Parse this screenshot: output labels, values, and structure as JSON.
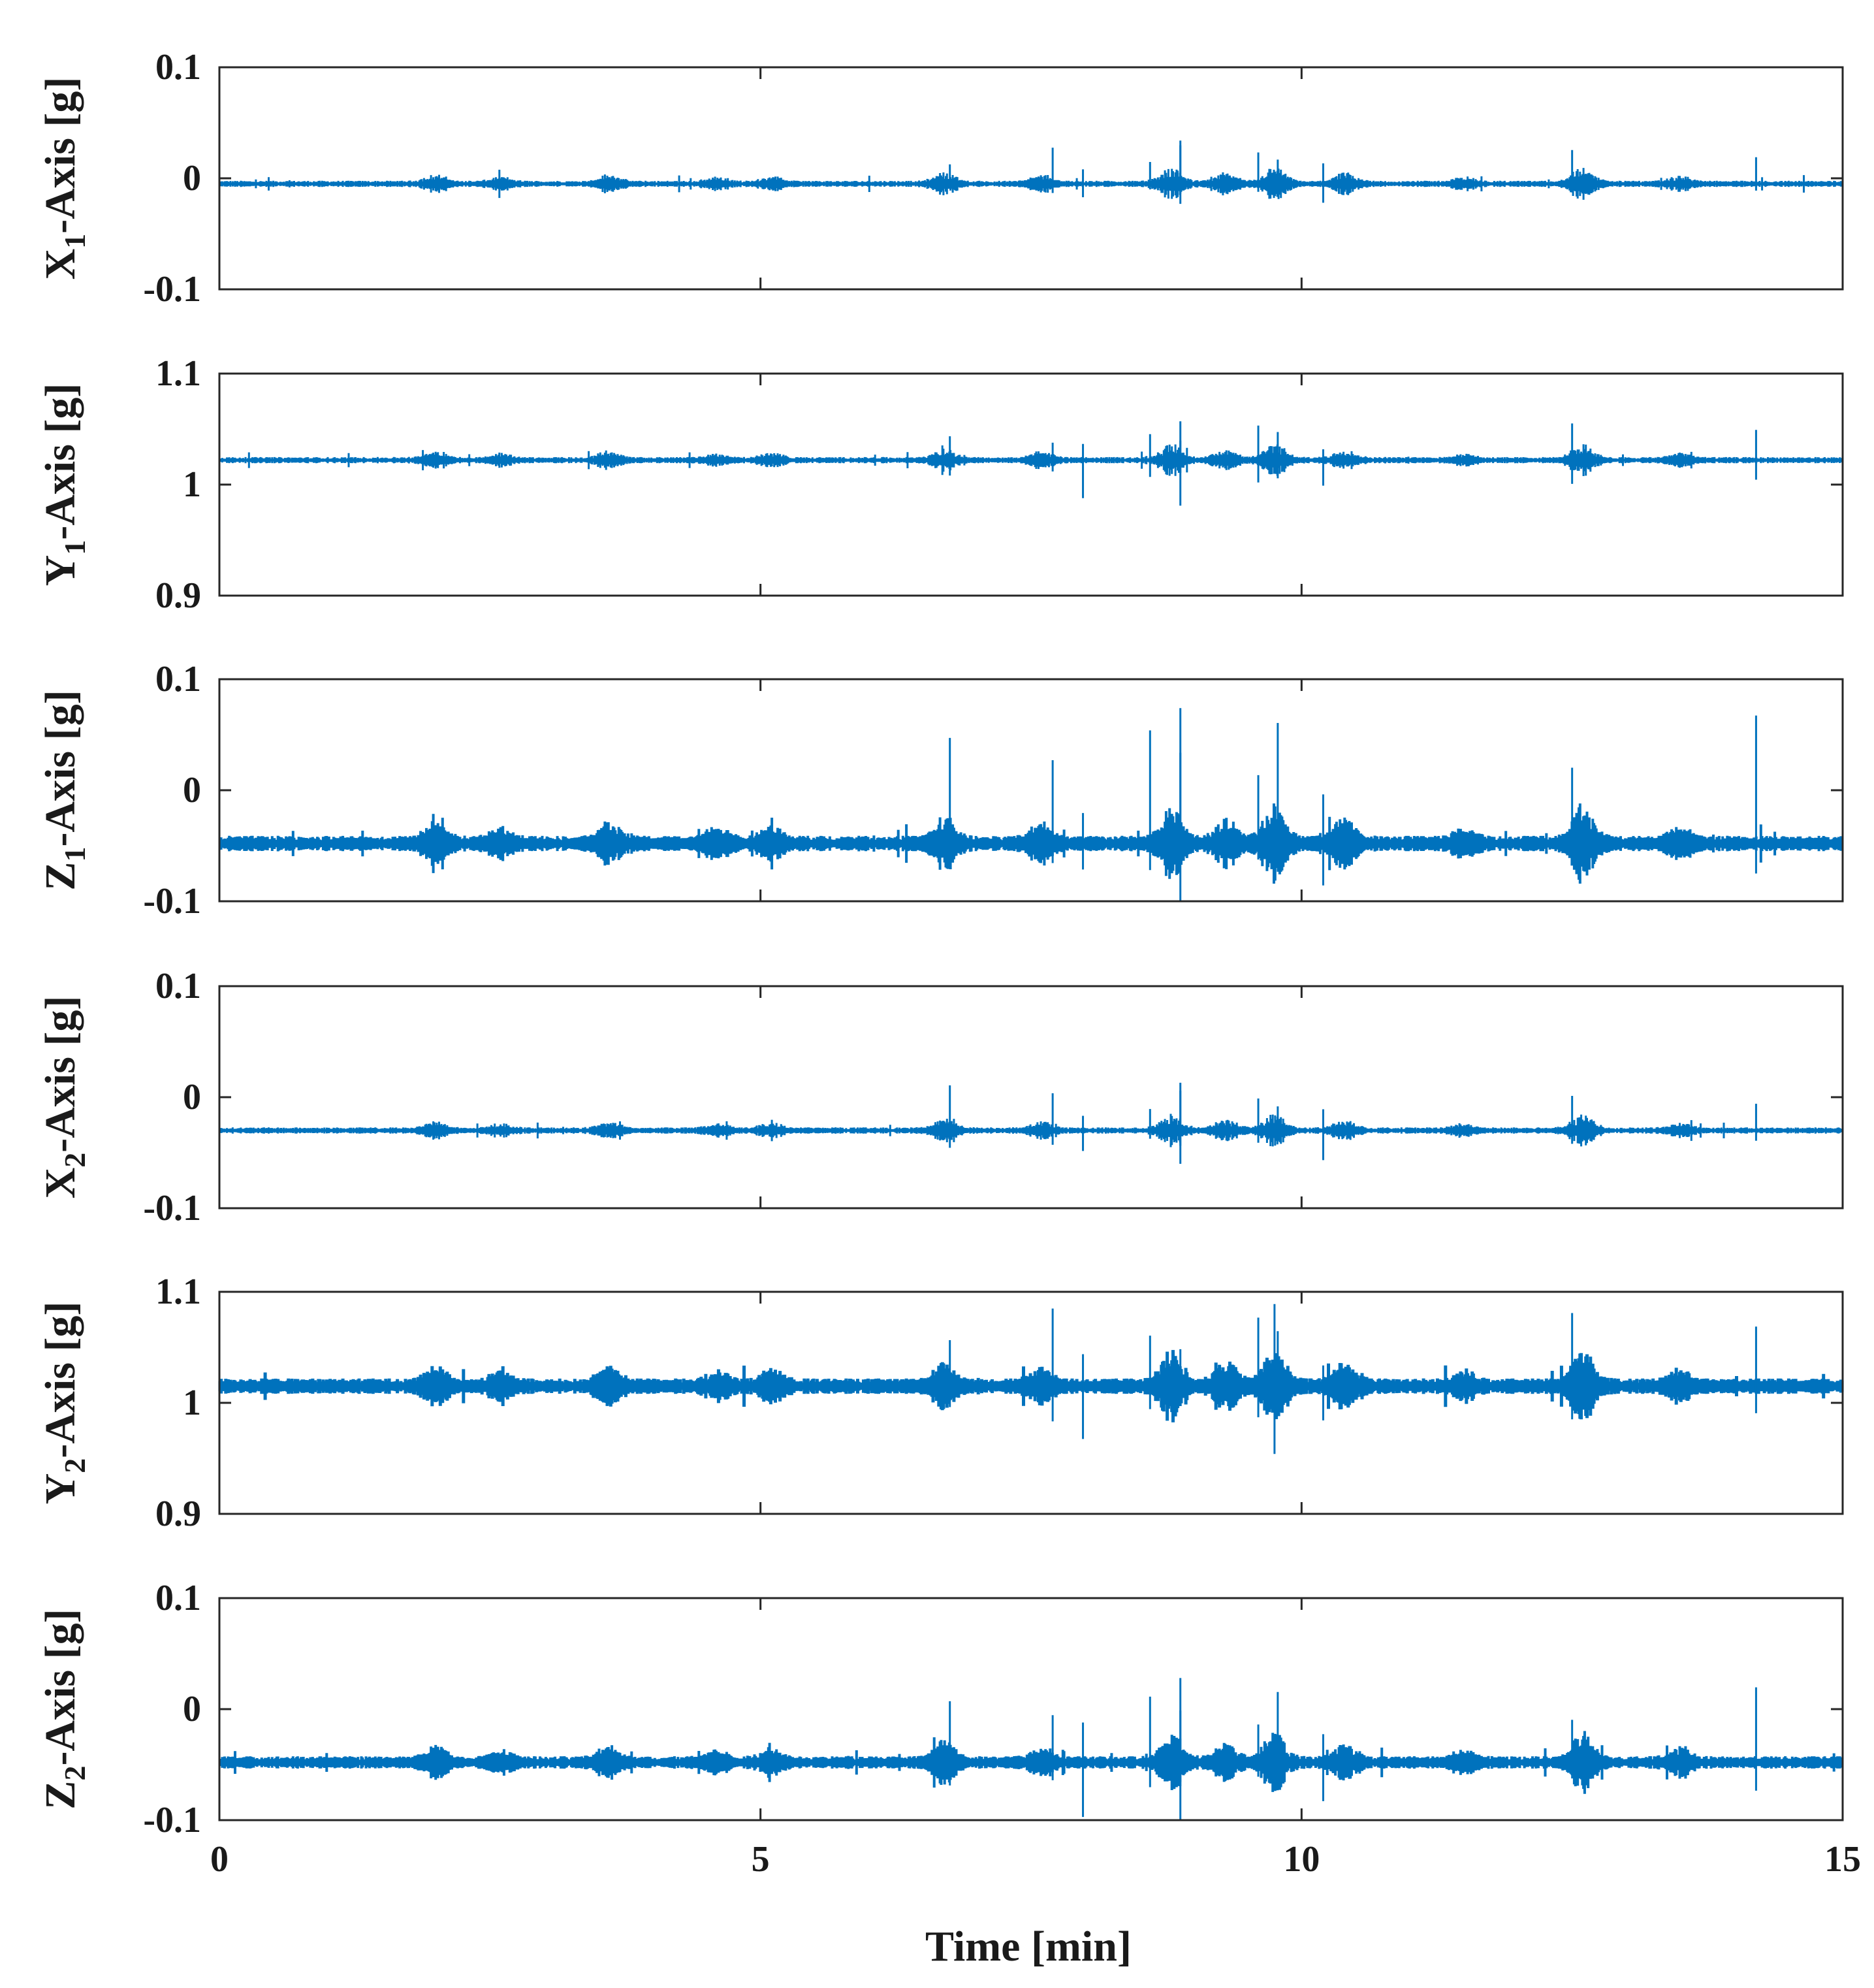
{
  "chart_data": {
    "type": "line",
    "xlabel": "Time [min]",
    "xlim": [
      0,
      15
    ],
    "xticks": [
      0,
      5,
      10,
      15
    ],
    "xtick_labels": [
      "0",
      "5",
      "10",
      "15"
    ],
    "grid": false,
    "colors": {
      "line": "#0072bd",
      "axes": "#262626",
      "text": "#1a1a1a"
    },
    "events": [
      {
        "t": 2.0,
        "s": 0.45
      },
      {
        "t": 2.6,
        "s": 0.3
      },
      {
        "t": 3.6,
        "s": 0.45
      },
      {
        "t": 4.6,
        "s": 0.3
      },
      {
        "t": 5.1,
        "s": 0.35
      },
      {
        "t": 6.7,
        "s": 0.6
      },
      {
        "t": 7.6,
        "s": 0.45
      },
      {
        "t": 8.8,
        "s": 0.85
      },
      {
        "t": 9.3,
        "s": 0.55
      },
      {
        "t": 9.75,
        "s": 0.9
      },
      {
        "t": 10.4,
        "s": 0.55
      },
      {
        "t": 11.5,
        "s": 0.3
      },
      {
        "t": 12.6,
        "s": 0.9
      },
      {
        "t": 13.5,
        "s": 0.35
      }
    ],
    "spikes": [
      {
        "t": 6.75,
        "dir": 1
      },
      {
        "t": 7.7,
        "dir": 1
      },
      {
        "t": 7.98,
        "dir": -1
      },
      {
        "t": 8.6,
        "dir": 1
      },
      {
        "t": 8.88,
        "dir": 1
      },
      {
        "t": 9.6,
        "dir": 1
      },
      {
        "t": 9.78,
        "dir": 1
      },
      {
        "t": 10.2,
        "dir": -1
      },
      {
        "t": 12.5,
        "dir": 1
      },
      {
        "t": 14.2,
        "dir": 1
      }
    ],
    "series": [
      {
        "name": "X1",
        "ylabel_main": "X",
        "ylabel_sub": "1",
        "ylabel_rest": "-Axis [g]",
        "ylim": [
          -0.1,
          0.1
        ],
        "yticks": [
          -0.1,
          0,
          0.1
        ],
        "ytick_labels": [
          "-0.1",
          "0",
          "0.1"
        ],
        "baseline": -0.005,
        "noise": 0.002,
        "burst": 0.012,
        "spike_max": 0.034,
        "spike_min": -0.023,
        "thick": 3
      },
      {
        "name": "Y1",
        "ylabel_main": "Y",
        "ylabel_sub": "1",
        "ylabel_rest": "-Axis [g]",
        "ylim": [
          0.9,
          1.1
        ],
        "yticks": [
          0.9,
          1,
          1.1
        ],
        "ytick_labels": [
          "0.9",
          "1",
          "1.1"
        ],
        "baseline": 1.022,
        "noise": 0.002,
        "burst": 0.012,
        "spike_max": 1.057,
        "spike_min": 0.981,
        "thick": 3
      },
      {
        "name": "Z1",
        "ylabel_main": "Z",
        "ylabel_sub": "1",
        "ylabel_rest": "-Axis [g]",
        "ylim": [
          -0.1,
          0.1
        ],
        "yticks": [
          -0.1,
          0,
          0.1
        ],
        "ytick_labels": [
          "-0.1",
          "0",
          "0.1"
        ],
        "baseline": -0.048,
        "noise": 0.005,
        "burst": 0.028,
        "spike_max": 0.074,
        "spike_min": -0.1,
        "thick": 4
      },
      {
        "name": "X2",
        "ylabel_main": "X",
        "ylabel_sub": "2",
        "ylabel_rest": "-Axis [g]",
        "ylim": [
          -0.1,
          0.1
        ],
        "yticks": [
          -0.1,
          0,
          0.1
        ],
        "ytick_labels": [
          "-0.1",
          "0",
          "0.1"
        ],
        "baseline": -0.03,
        "noise": 0.002,
        "burst": 0.012,
        "spike_max": 0.013,
        "spike_min": -0.06,
        "thick": 3
      },
      {
        "name": "Y2",
        "ylabel_main": "Y",
        "ylabel_sub": "2",
        "ylabel_rest": "-Axis [g]",
        "ylim": [
          0.9,
          1.1
        ],
        "yticks": [
          0.9,
          1,
          1.1
        ],
        "ytick_labels": [
          "0.9",
          "1",
          "1.1"
        ],
        "baseline": 1.015,
        "noise": 0.005,
        "burst": 0.026,
        "spike_max": 1.089,
        "spike_min": 0.954,
        "thick": 5
      },
      {
        "name": "Z2",
        "ylabel_main": "Z",
        "ylabel_sub": "2",
        "ylabel_rest": "-Axis [g]",
        "ylim": [
          -0.1,
          0.1
        ],
        "yticks": [
          -0.1,
          0,
          0.1
        ],
        "ytick_labels": [
          "-0.1",
          "0",
          "0.1"
        ],
        "baseline": -0.048,
        "noise": 0.004,
        "burst": 0.022,
        "spike_max": 0.028,
        "spike_min": -0.1,
        "thick": 4
      }
    ]
  }
}
